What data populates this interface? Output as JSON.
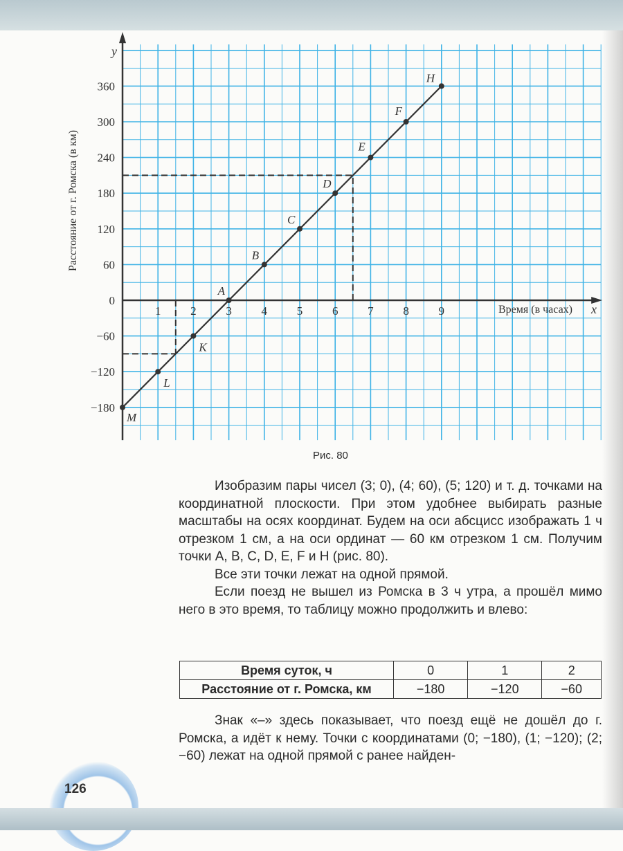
{
  "chart_data": {
    "type": "line",
    "x_axis_label": "Время (в часах)",
    "y_axis_label": "Расстояние от г. Ромска (в км)",
    "x_axis_letter": "x",
    "y_axis_letter": "y",
    "x_ticks": [
      1,
      2,
      3,
      4,
      5,
      6,
      7,
      8,
      9
    ],
    "y_ticks": [
      -180,
      -120,
      -60,
      0,
      60,
      120,
      180,
      240,
      300,
      360
    ],
    "xlim": [
      0,
      13.5
    ],
    "ylim": [
      -235,
      430
    ],
    "grid": true,
    "grid_color": "#3fb3e6",
    "line_color": "#333333",
    "points": [
      {
        "label": "M",
        "x": 0,
        "y": -180
      },
      {
        "label": "L",
        "x": 1,
        "y": -120
      },
      {
        "label": "K",
        "x": 2,
        "y": -60
      },
      {
        "label": "A",
        "x": 3,
        "y": 0
      },
      {
        "label": "B",
        "x": 4,
        "y": 60
      },
      {
        "label": "C",
        "x": 5,
        "y": 120
      },
      {
        "label": "D",
        "x": 6,
        "y": 180
      },
      {
        "label": "E",
        "x": 7,
        "y": 240
      },
      {
        "label": "F",
        "x": 8,
        "y": 300
      },
      {
        "label": "H",
        "x": 9,
        "y": 360
      }
    ],
    "dashed_guides": [
      {
        "x": 1.5,
        "y": -90
      },
      {
        "x": 6.5,
        "y": 210
      }
    ]
  },
  "figure_caption": "Рис. 80",
  "paragraphs_before": [
    "Изобразим пары чисел (3; 0), (4; 60), (5; 120) и т. д. точками на координатной плоскости. При этом удобнее выбирать разные масштабы на осях координат. Будем на оси абсцисс изображать 1 ч отрезком 1 см, а на оси ординат — 60 км отрезком 1 см. Получим точки A, B, C, D, E, F и H (рис. 80).",
    "Все эти точки лежат на одной прямой.",
    "Если поезд не вышел из Ромска в 3 ч утра, а прошёл мимо него в это время, то таблицу можно продолжить и влево:"
  ],
  "table": {
    "rows": [
      [
        "Время суток, ч",
        "0",
        "1",
        "2"
      ],
      [
        "Расстояние от г. Ромска, км",
        "−180",
        "−120",
        "−60"
      ]
    ]
  },
  "paragraph_after": "Знак «–» здесь показывает, что поезд ещё не дошёл до г. Ромска, а идёт к нему. Точки с координатами (0; −180), (1; −120); (2; −60) лежат на одной прямой с ранее найден-",
  "page_number": "126"
}
